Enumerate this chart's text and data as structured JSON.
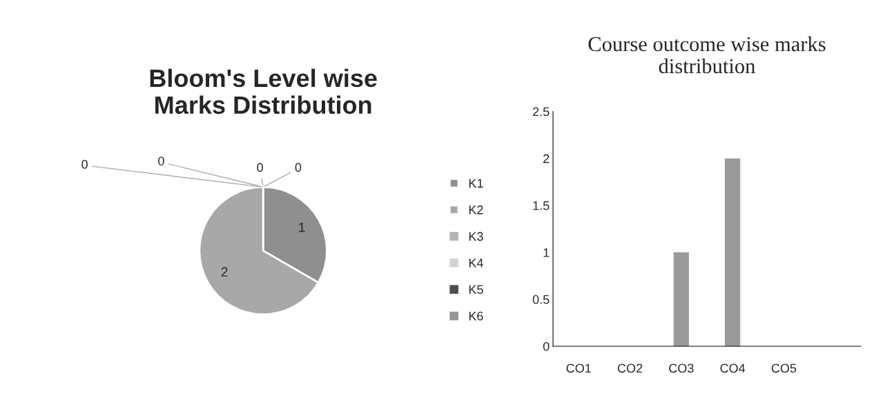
{
  "chart_data": [
    {
      "type": "pie",
      "title": "Bloom's Level wise\nMarks Distribution",
      "categories": [
        "K1",
        "K2",
        "K3",
        "K4",
        "K5",
        "K6"
      ],
      "values": [
        1,
        2,
        0,
        0,
        0,
        0
      ],
      "colors": [
        "#8f8f8f",
        "#a8a8a8",
        "#b4b4b4",
        "#d2d2d2",
        "#4f4f4f",
        "#969696"
      ],
      "value_labels": [
        "1",
        "2",
        "0",
        "0",
        "0",
        "0"
      ],
      "legend": "right"
    },
    {
      "type": "bar",
      "title": "Course outcome wise marks\ndistribution",
      "categories": [
        "CO1",
        "CO2",
        "CO3",
        "CO4",
        "CO5",
        null
      ],
      "values": [
        0,
        0,
        1,
        2,
        0,
        null
      ],
      "color": "#9a9a9a",
      "ylim": [
        0,
        2.5
      ],
      "yticks": [
        0,
        0.5,
        1,
        1.5,
        2,
        2.5
      ],
      "grid": false
    }
  ]
}
